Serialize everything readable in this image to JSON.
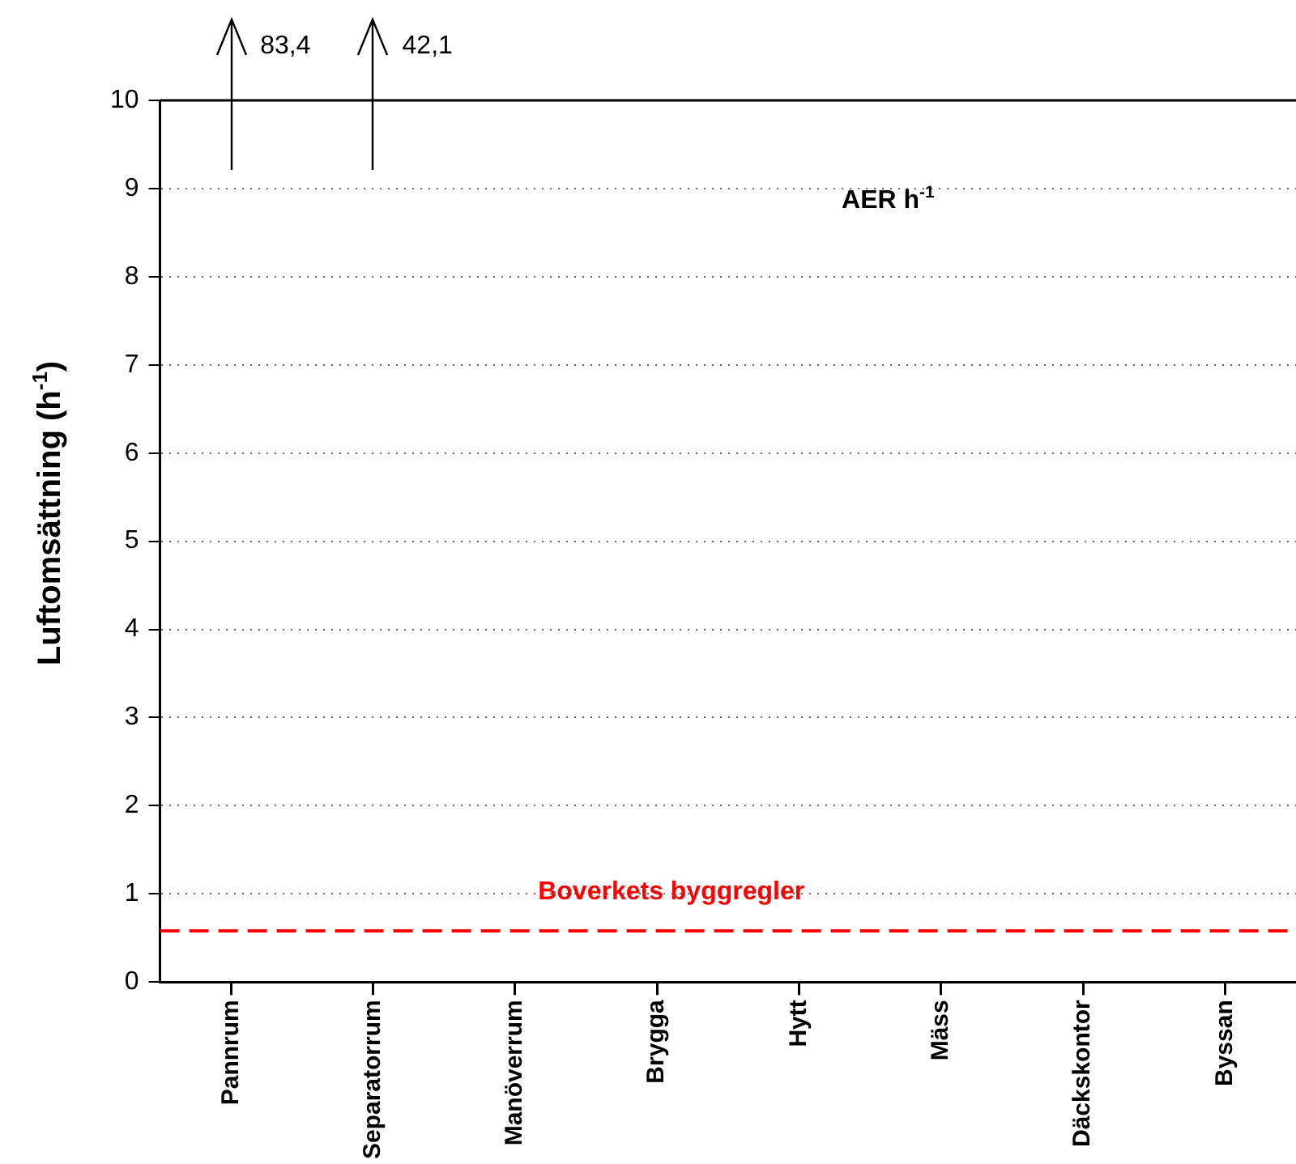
{
  "chart_data": {
    "type": "bar",
    "categories": [
      "Pannrum",
      "Separatorrum",
      "Manöverrum",
      "Brygga",
      "Hytt",
      "Mäss",
      "Däckskontor",
      "Byssan"
    ],
    "values": [
      null,
      null,
      null,
      null,
      null,
      null,
      null,
      null
    ],
    "color": "#000000",
    "ylabel": "Luftomsättning (h$^{-1}$)",
    "ylim": [
      0,
      10
    ],
    "yticks": [
      0,
      1,
      2,
      3,
      4,
      5,
      6,
      7,
      8,
      9,
      10
    ],
    "grid": "y",
    "legend": false,
    "ref_lines": [
      {
        "axis": "y",
        "value": 0.58,
        "label": "Boverkets byggregler",
        "color": "#ff0000",
        "line_style": "dashed"
      }
    ],
    "annotations": [
      "83,4",
      "42,1",
      "AER h$^{-1}$"
    ]
  }
}
